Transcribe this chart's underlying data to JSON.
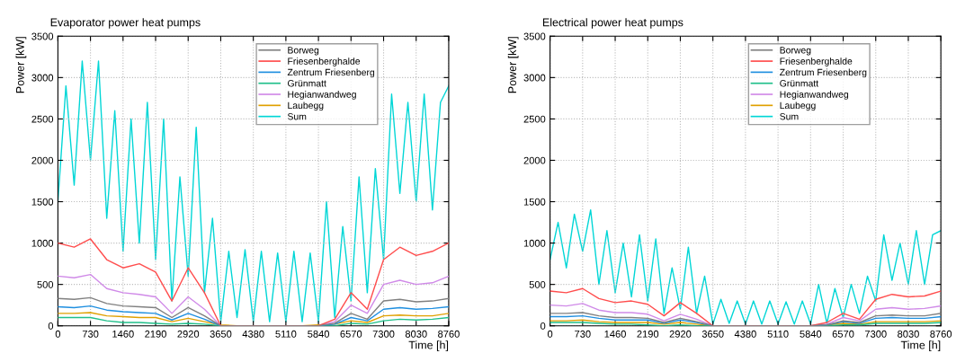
{
  "chart_data": [
    {
      "type": "line",
      "title": "Evaporator power heat pumps",
      "xlabel": "Time [h]",
      "ylabel": "Power [kW]",
      "x": [
        0,
        365,
        730,
        1095,
        1460,
        1825,
        2190,
        2555,
        2920,
        3285,
        3650,
        4015,
        4380,
        4745,
        5110,
        5475,
        5840,
        6205,
        6570,
        6935,
        7300,
        7665,
        8030,
        8395,
        8760
      ],
      "xlim": [
        0,
        8760
      ],
      "xticks": [
        0,
        730,
        1460,
        2190,
        2920,
        3650,
        4380,
        5110,
        5840,
        6570,
        7300,
        8030,
        8760
      ],
      "ylim": [
        0,
        3500
      ],
      "yticks": [
        0,
        500,
        1000,
        1500,
        2000,
        2500,
        3000,
        3500
      ],
      "grid": true,
      "legend": "top right",
      "line_style": "solid",
      "marker": "none",
      "series": [
        {
          "name": "Borweg",
          "color": "#808080",
          "values": [
            330,
            320,
            340,
            270,
            240,
            230,
            220,
            100,
            220,
            120,
            0,
            0,
            0,
            0,
            0,
            0,
            0,
            30,
            150,
            80,
            300,
            320,
            290,
            300,
            330
          ]
        },
        {
          "name": "Friesenberghalde",
          "color": "#ff4d4d",
          "values": [
            1000,
            950,
            1050,
            800,
            700,
            750,
            650,
            300,
            700,
            400,
            0,
            0,
            0,
            0,
            0,
            0,
            0,
            80,
            400,
            200,
            800,
            950,
            850,
            900,
            1000
          ]
        },
        {
          "name": "Zentrum Friesenberg",
          "color": "#1f8fe0",
          "values": [
            230,
            220,
            240,
            190,
            170,
            160,
            150,
            70,
            150,
            80,
            0,
            0,
            0,
            0,
            0,
            0,
            0,
            20,
            100,
            60,
            200,
            220,
            200,
            210,
            230
          ]
        },
        {
          "name": "Grünmatt",
          "color": "#20c08a",
          "values": [
            100,
            100,
            100,
            60,
            40,
            40,
            30,
            20,
            30,
            20,
            0,
            0,
            0,
            0,
            0,
            0,
            0,
            0,
            30,
            20,
            60,
            80,
            70,
            80,
            100
          ]
        },
        {
          "name": "Hegianwandweg",
          "color": "#d08ae8",
          "values": [
            600,
            580,
            620,
            450,
            400,
            380,
            350,
            150,
            350,
            200,
            0,
            0,
            0,
            0,
            0,
            0,
            0,
            50,
            250,
            150,
            500,
            550,
            500,
            520,
            600
          ]
        },
        {
          "name": "Laubegg",
          "color": "#e0a000",
          "values": [
            150,
            150,
            160,
            120,
            110,
            100,
            100,
            50,
            90,
            50,
            10,
            0,
            0,
            0,
            0,
            0,
            10,
            20,
            60,
            40,
            120,
            130,
            120,
            120,
            150
          ]
        },
        {
          "name": "Sum",
          "color": "#00d6d6",
          "x": [
            0,
            180,
            365,
            545,
            730,
            910,
            1095,
            1275,
            1460,
            1640,
            1825,
            2005,
            2190,
            2370,
            2555,
            2735,
            2920,
            3100,
            3285,
            3465,
            3650,
            3830,
            4015,
            4195,
            4380,
            4560,
            4745,
            4925,
            5110,
            5290,
            5475,
            5655,
            5840,
            6020,
            6205,
            6385,
            6570,
            6750,
            6935,
            7115,
            7300,
            7480,
            7665,
            7845,
            8030,
            8210,
            8395,
            8575,
            8760
          ],
          "values": [
            1500,
            2900,
            1700,
            3200,
            2000,
            3200,
            1300,
            2600,
            900,
            2500,
            1000,
            2700,
            800,
            2500,
            300,
            1800,
            600,
            2400,
            400,
            1300,
            50,
            900,
            100,
            920,
            50,
            900,
            50,
            880,
            50,
            900,
            50,
            880,
            50,
            1500,
            100,
            1200,
            300,
            1800,
            400,
            1900,
            800,
            2800,
            1600,
            2700,
            1500,
            2800,
            1400,
            2700,
            2900
          ]
        }
      ]
    },
    {
      "type": "line",
      "title": "Electrical power heat pumps",
      "xlabel": "Time [h]",
      "ylabel": "Power [kW]",
      "x": [
        0,
        365,
        730,
        1095,
        1460,
        1825,
        2190,
        2555,
        2920,
        3285,
        3650,
        4015,
        4380,
        4745,
        5110,
        5475,
        5840,
        6205,
        6570,
        6935,
        7300,
        7665,
        8030,
        8395,
        8760
      ],
      "xlim": [
        0,
        8760
      ],
      "xticks": [
        0,
        730,
        1460,
        2190,
        2920,
        3650,
        4380,
        5110,
        5840,
        6570,
        7300,
        8030,
        8760
      ],
      "ylim": [
        0,
        3500
      ],
      "yticks": [
        0,
        500,
        1000,
        1500,
        2000,
        2500,
        3000,
        3500
      ],
      "grid": true,
      "legend": "top right",
      "line_style": "solid",
      "marker": "none",
      "series": [
        {
          "name": "Borweg",
          "color": "#808080",
          "values": [
            150,
            150,
            160,
            120,
            100,
            100,
            90,
            40,
            90,
            50,
            0,
            0,
            0,
            0,
            0,
            0,
            0,
            10,
            60,
            40,
            120,
            130,
            120,
            120,
            150
          ]
        },
        {
          "name": "Friesenberghalde",
          "color": "#ff4d4d",
          "values": [
            420,
            400,
            450,
            330,
            280,
            300,
            260,
            120,
            280,
            150,
            0,
            0,
            0,
            0,
            0,
            0,
            0,
            40,
            150,
            80,
            320,
            380,
            350,
            360,
            420
          ]
        },
        {
          "name": "Zentrum Friesenberg",
          "color": "#1f8fe0",
          "values": [
            110,
            110,
            120,
            90,
            70,
            70,
            70,
            30,
            70,
            40,
            0,
            0,
            0,
            0,
            0,
            0,
            0,
            10,
            50,
            30,
            90,
            100,
            90,
            90,
            110
          ]
        },
        {
          "name": "Grünmatt",
          "color": "#20c08a",
          "values": [
            40,
            40,
            40,
            30,
            20,
            20,
            10,
            0,
            10,
            0,
            0,
            0,
            0,
            0,
            0,
            0,
            0,
            0,
            10,
            10,
            30,
            30,
            30,
            30,
            40
          ]
        },
        {
          "name": "Hegianwandweg",
          "color": "#d08ae8",
          "values": [
            250,
            240,
            270,
            190,
            160,
            160,
            140,
            60,
            140,
            80,
            0,
            0,
            0,
            0,
            0,
            0,
            0,
            20,
            100,
            60,
            200,
            220,
            200,
            210,
            240
          ]
        },
        {
          "name": "Laubegg",
          "color": "#e0a000",
          "values": [
            60,
            60,
            70,
            50,
            40,
            40,
            40,
            20,
            40,
            20,
            0,
            0,
            0,
            0,
            0,
            0,
            0,
            10,
            30,
            20,
            50,
            50,
            50,
            50,
            60
          ]
        },
        {
          "name": "Sum",
          "color": "#00d6d6",
          "x": [
            0,
            180,
            365,
            545,
            730,
            910,
            1095,
            1275,
            1460,
            1640,
            1825,
            2005,
            2190,
            2370,
            2555,
            2735,
            2920,
            3100,
            3285,
            3465,
            3650,
            3830,
            4015,
            4195,
            4380,
            4560,
            4745,
            4925,
            5110,
            5290,
            5475,
            5655,
            5840,
            6020,
            6205,
            6385,
            6570,
            6750,
            6935,
            7115,
            7300,
            7480,
            7665,
            7845,
            8030,
            8210,
            8395,
            8575,
            8760
          ],
          "values": [
            800,
            1250,
            700,
            1350,
            900,
            1400,
            500,
            1150,
            400,
            1000,
            350,
            1100,
            300,
            1050,
            150,
            700,
            200,
            950,
            150,
            600,
            20,
            320,
            30,
            300,
            20,
            300,
            20,
            300,
            20,
            290,
            20,
            300,
            20,
            500,
            30,
            450,
            100,
            500,
            150,
            600,
            300,
            1100,
            550,
            1000,
            500,
            1150,
            500,
            1100,
            1150
          ]
        }
      ]
    }
  ]
}
